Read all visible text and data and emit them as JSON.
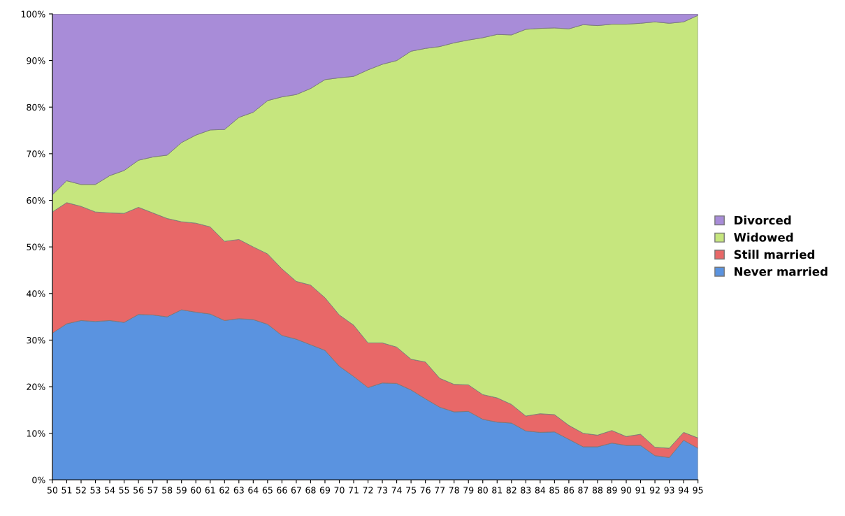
{
  "chart_data": {
    "type": "area",
    "stacked": true,
    "legend": "right",
    "grid": false,
    "categories": [
      "50",
      "51",
      "52",
      "53",
      "54",
      "55",
      "56",
      "57",
      "58",
      "59",
      "60",
      "61",
      "62",
      "63",
      "64",
      "65",
      "66",
      "67",
      "68",
      "69",
      "70",
      "71",
      "72",
      "73",
      "74",
      "75",
      "76",
      "77",
      "78",
      "79",
      "80",
      "81",
      "82",
      "83",
      "84",
      "85",
      "86",
      "87",
      "88",
      "89",
      "90",
      "91",
      "92",
      "93",
      "94",
      "95"
    ],
    "ylim": [
      0,
      100
    ],
    "yticks": [
      {
        "value": 0,
        "label": "0%"
      },
      {
        "value": 10,
        "label": "10%"
      },
      {
        "value": 20,
        "label": "20%"
      },
      {
        "value": 30,
        "label": "30%"
      },
      {
        "value": 40,
        "label": "40%"
      },
      {
        "value": 50,
        "label": "50%"
      },
      {
        "value": 60,
        "label": "60%"
      },
      {
        "value": 70,
        "label": "70%"
      },
      {
        "value": 80,
        "label": "80%"
      },
      {
        "value": 90,
        "label": "90%"
      },
      {
        "value": 100,
        "label": "100%"
      }
    ],
    "series": [
      {
        "name": "Never married",
        "color": "#5a93e0",
        "values": [
          31.5,
          33.5,
          34.2,
          34.0,
          34.2,
          33.8,
          35.5,
          35.4,
          35.0,
          36.5,
          36.0,
          35.6,
          34.2,
          34.6,
          34.4,
          33.4,
          31.0,
          30.2,
          29.0,
          27.8,
          24.4,
          22.2,
          19.8,
          20.8,
          20.7,
          19.3,
          17.4,
          15.6,
          14.6,
          14.7,
          13.0,
          12.4,
          12.2,
          10.5,
          10.2,
          10.3,
          8.7,
          7.1,
          7.1,
          7.9,
          7.4,
          7.4,
          5.2,
          4.8,
          8.5,
          6.8
        ]
      },
      {
        "name": "Still married",
        "color": "#e86868",
        "values": [
          26.0,
          26.0,
          24.5,
          23.5,
          23.1,
          23.4,
          23.0,
          21.9,
          21.1,
          18.9,
          19.1,
          18.7,
          17.0,
          17.0,
          15.6,
          15.1,
          14.3,
          12.4,
          12.8,
          11.3,
          11.0,
          11.0,
          9.6,
          8.6,
          7.8,
          6.6,
          7.9,
          6.2,
          5.9,
          5.7,
          5.3,
          5.2,
          4.0,
          3.2,
          4.0,
          3.7,
          3.0,
          2.9,
          2.5,
          2.7,
          1.9,
          2.4,
          1.8,
          2.0,
          1.7,
          2.2
        ]
      },
      {
        "name": "Widowed",
        "color": "#c6e67e",
        "values": [
          3.7,
          4.7,
          4.7,
          5.9,
          8.0,
          9.2,
          10.1,
          12.0,
          13.6,
          17.0,
          18.9,
          20.8,
          24.0,
          26.2,
          28.9,
          32.9,
          36.9,
          40.1,
          42.2,
          46.8,
          50.9,
          53.4,
          58.6,
          59.8,
          61.5,
          66.1,
          67.3,
          71.2,
          73.3,
          74.0,
          76.6,
          78.0,
          79.3,
          83.0,
          82.7,
          83.0,
          85.1,
          87.7,
          87.9,
          87.2,
          88.5,
          88.2,
          91.3,
          91.2,
          88.1,
          90.7
        ]
      },
      {
        "name": "Divorced",
        "color": "#a88cd8",
        "values": [
          38.8,
          35.8,
          36.6,
          36.6,
          34.7,
          33.6,
          31.4,
          30.7,
          30.3,
          27.6,
          26.0,
          24.9,
          24.8,
          22.2,
          21.1,
          18.6,
          17.8,
          17.3,
          16.0,
          14.1,
          13.7,
          13.4,
          12.0,
          10.8,
          10.0,
          8.0,
          7.4,
          7.0,
          6.2,
          5.6,
          5.1,
          4.4,
          4.5,
          3.3,
          3.1,
          3.0,
          3.2,
          2.3,
          2.5,
          2.2,
          2.2,
          2.0,
          1.7,
          2.0,
          1.7,
          0.3
        ]
      }
    ]
  }
}
